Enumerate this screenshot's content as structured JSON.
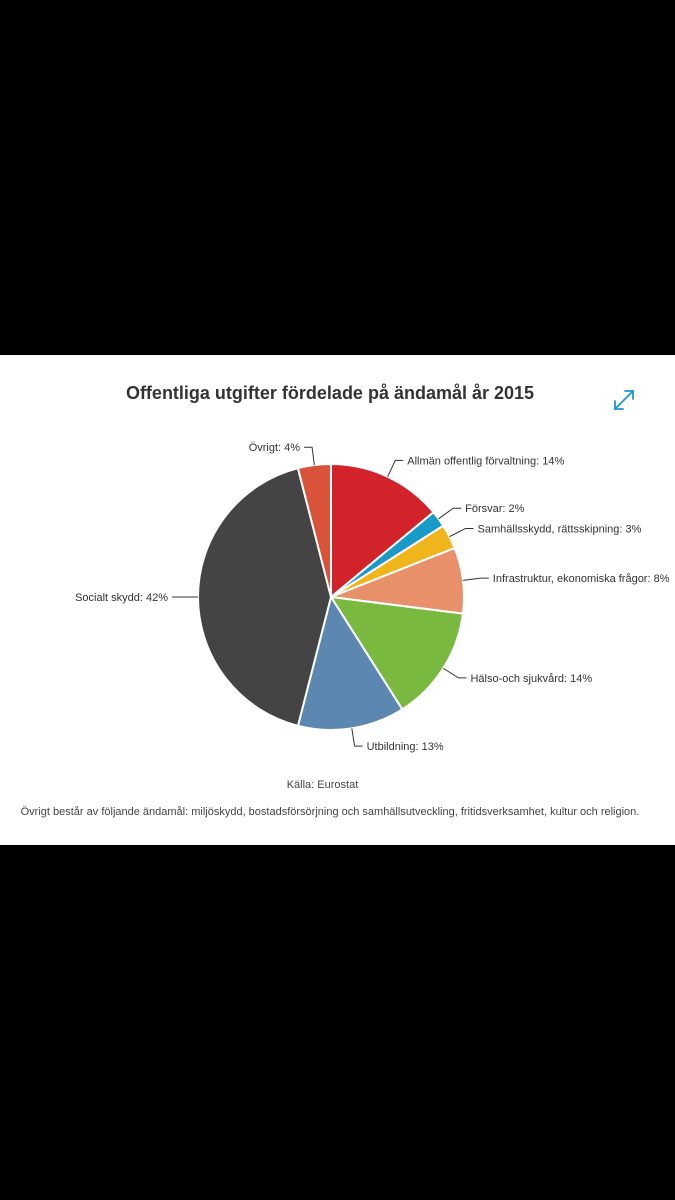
{
  "chart_data": {
    "type": "pie",
    "title": "Offentliga utgifter fördelade på ändamål år 2015",
    "slices": [
      {
        "label": "Allmän offentlig förvaltning: 14%",
        "value": 14,
        "color": "#d2232a"
      },
      {
        "label": "Försvar: 2%",
        "value": 2,
        "color": "#1a9ac9"
      },
      {
        "label": "Samhällsskydd, rättsskipning: 3%",
        "value": 3,
        "color": "#f0b51a"
      },
      {
        "label": "Infrastruktur, ekonomiska frågor: 8%",
        "value": 8,
        "color": "#e8906a"
      },
      {
        "label": "Hälso-och sjukvård: 14%",
        "value": 14,
        "color": "#7ab940"
      },
      {
        "label": "Utbildning: 13%",
        "value": 13,
        "color": "#5b87b0"
      },
      {
        "label": "Socialt skydd: 42%",
        "value": 42,
        "color": "#444444"
      },
      {
        "label": "Övrigt: 4%",
        "value": 4,
        "color": "#d9533a"
      }
    ],
    "source": "Källa: Eurostat",
    "footnote": "Övrigt består av följande ändamål: miljöskydd, bostadsförsörjning och samhällsutveckling, fritidsverksamhet, kultur och religion."
  },
  "icons": {
    "expand": "expand-arrows-icon"
  },
  "colors": {
    "accent": "#1a9ac9",
    "background": "#ffffff",
    "frame": "#000000"
  }
}
